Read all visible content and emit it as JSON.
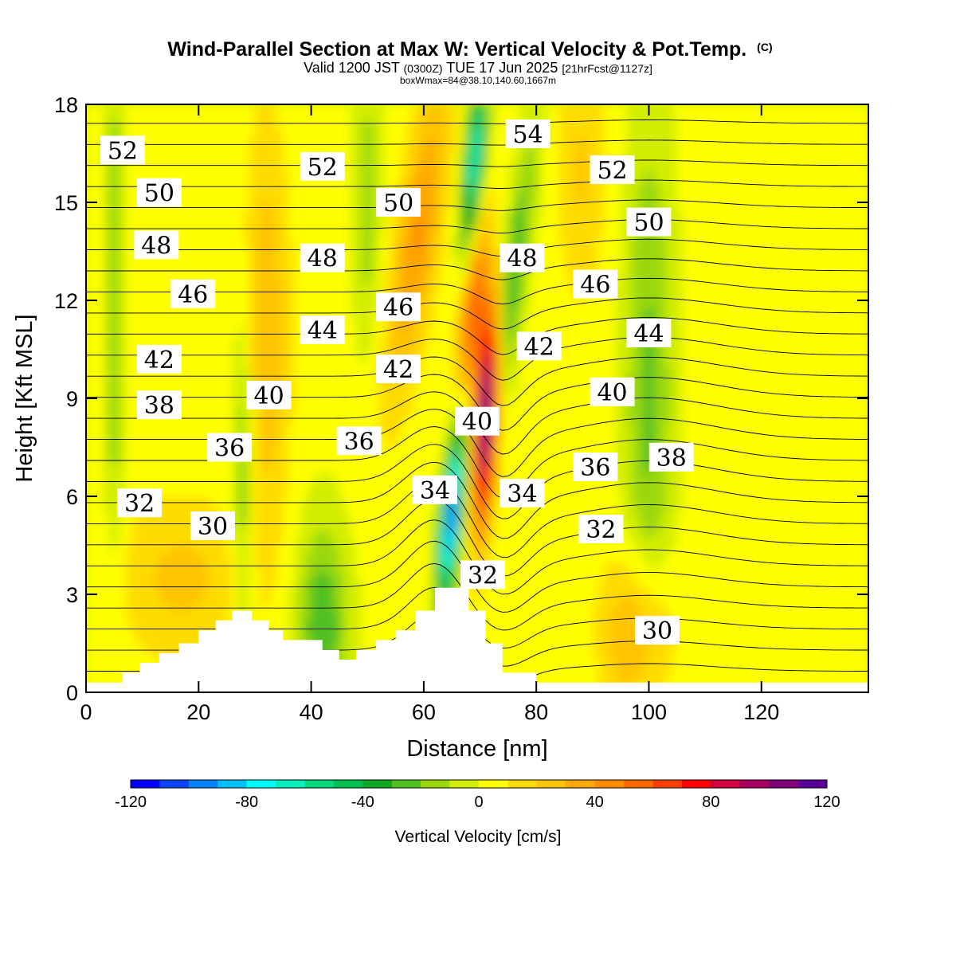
{
  "title": {
    "main": "Wind-Parallel Section at Max W: Vertical Velocity & Pot.Temp.",
    "main_tag": "(C)",
    "valid_prefix": "Valid 1200 JST",
    "valid_utc": "(0300Z)",
    "valid_date": "TUE 17 Jun 2025",
    "forecast": "[21hrFcst@1127z]",
    "box": "boxWmax=84@38.10,140.60,1667m"
  },
  "colorbar": {
    "label": "Vertical Velocity [cm/s]",
    "tick_labels": [
      "-120",
      "-80",
      "-40",
      "0",
      "40",
      "80",
      "120"
    ],
    "tick_values": [
      -120,
      -80,
      -40,
      0,
      40,
      80,
      120
    ],
    "colors": [
      "#0000ff",
      "#0a46ff",
      "#0a82ff",
      "#00c0ff",
      "#00ffff",
      "#00f0c0",
      "#00d87a",
      "#00c050",
      "#10a820",
      "#50c020",
      "#9ad80a",
      "#d2ee00",
      "#ffff00",
      "#ffdc00",
      "#ffc400",
      "#ffa800",
      "#ff8c00",
      "#ff6a00",
      "#ff4000",
      "#ff0000",
      "#d20040",
      "#a80060",
      "#820078",
      "#5a0096"
    ]
  },
  "chart_data": {
    "type": "heatmap",
    "xlabel": "Distance [nm]",
    "ylabel": "Height [Kft MSL]",
    "xlim": [
      0,
      139
    ],
    "ylim": [
      0,
      18
    ],
    "x_ticks": [
      0,
      20,
      40,
      60,
      80,
      100,
      120
    ],
    "x_tick_labels": [
      "0",
      "20",
      "40",
      "60",
      "80",
      "100",
      "120"
    ],
    "y_ticks": [
      0,
      3,
      6,
      9,
      12,
      15,
      18
    ],
    "y_tick_labels": [
      "0",
      "3",
      "6",
      "9",
      "12",
      "15",
      "18"
    ],
    "color_field": "Vertical Velocity [cm/s]",
    "contour_field": "Potential Temperature [C]",
    "contour_interval": 1,
    "terrain_profile": {
      "x": [
        0,
        6.5,
        9.5,
        13,
        16.5,
        20,
        23,
        26,
        29.5,
        32.5,
        35,
        38,
        42,
        45,
        48,
        51.5,
        55,
        58.5,
        62,
        68,
        71,
        74,
        80,
        139
      ],
      "height_kft": [
        0.3,
        0.6,
        0.9,
        1.2,
        1.5,
        1.9,
        2.2,
        2.5,
        2.2,
        1.9,
        1.6,
        1.6,
        1.3,
        1.0,
        1.3,
        1.6,
        1.9,
        2.5,
        3.2,
        2.5,
        1.5,
        0.6,
        0.3,
        0.3
      ]
    },
    "peak_updraft": {
      "x_nm": 71.5,
      "height_kft": 8.5,
      "w_cm_s": 120
    },
    "peak_downdraft": {
      "x_nm": 65.5,
      "height_kft": 5.5,
      "w_cm_s": -90
    },
    "contour_labels": [
      {
        "value": "52",
        "x": 6.5,
        "y": 16.6
      },
      {
        "value": "50",
        "x": 13,
        "y": 15.3
      },
      {
        "value": "48",
        "x": 12.5,
        "y": 13.7
      },
      {
        "value": "46",
        "x": 19,
        "y": 12.2
      },
      {
        "value": "42",
        "x": 13,
        "y": 10.2
      },
      {
        "value": "38",
        "x": 13,
        "y": 8.8
      },
      {
        "value": "36",
        "x": 25.5,
        "y": 7.5
      },
      {
        "value": "32",
        "x": 9.5,
        "y": 5.8
      },
      {
        "value": "30",
        "x": 22.5,
        "y": 5.1
      },
      {
        "value": "52",
        "x": 42,
        "y": 16.1
      },
      {
        "value": "48",
        "x": 42,
        "y": 13.3
      },
      {
        "value": "44",
        "x": 42,
        "y": 11.1
      },
      {
        "value": "40",
        "x": 32.5,
        "y": 9.1
      },
      {
        "value": "36",
        "x": 48.5,
        "y": 7.7
      },
      {
        "value": "50",
        "x": 55.5,
        "y": 15.0
      },
      {
        "value": "46",
        "x": 55.5,
        "y": 11.8
      },
      {
        "value": "42",
        "x": 55.5,
        "y": 9.9
      },
      {
        "value": "34",
        "x": 62,
        "y": 6.2
      },
      {
        "value": "40",
        "x": 69.5,
        "y": 8.3
      },
      {
        "value": "32",
        "x": 70.5,
        "y": 3.6
      },
      {
        "value": "54",
        "x": 78.5,
        "y": 17.1
      },
      {
        "value": "48",
        "x": 77.5,
        "y": 13.3
      },
      {
        "value": "42",
        "x": 80.5,
        "y": 10.6
      },
      {
        "value": "34",
        "x": 77.5,
        "y": 6.1
      },
      {
        "value": "52",
        "x": 93.5,
        "y": 16.0
      },
      {
        "value": "50",
        "x": 100,
        "y": 14.4
      },
      {
        "value": "46",
        "x": 90.5,
        "y": 12.5
      },
      {
        "value": "44",
        "x": 100,
        "y": 11.0
      },
      {
        "value": "40",
        "x": 93.5,
        "y": 9.2
      },
      {
        "value": "36",
        "x": 90.5,
        "y": 6.9
      },
      {
        "value": "38",
        "x": 104,
        "y": 7.2
      },
      {
        "value": "32",
        "x": 91.5,
        "y": 5.0
      },
      {
        "value": "30",
        "x": 101.5,
        "y": 1.9
      }
    ]
  }
}
